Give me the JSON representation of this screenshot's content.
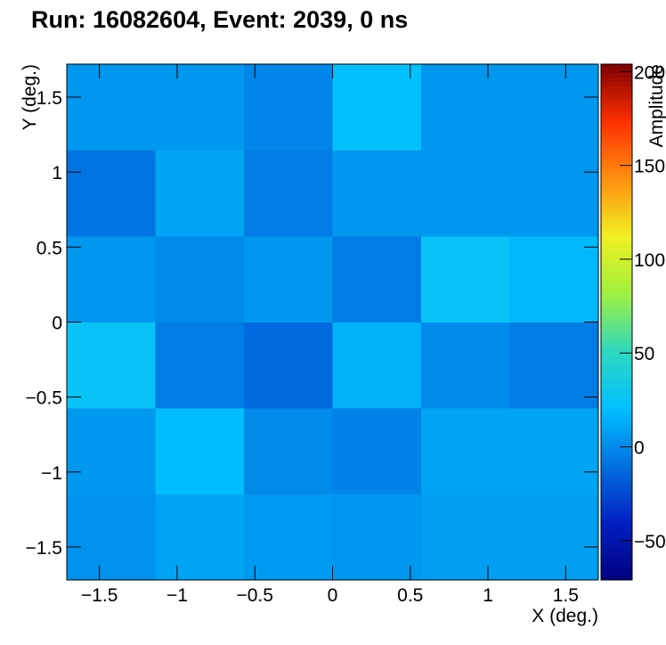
{
  "chart_data": {
    "type": "heatmap",
    "title": "Run: 16082604, Event: 2039, 0 ns",
    "x_label": "X (deg.)",
    "y_label": "Y (deg.)",
    "z_label": "Amplitude",
    "xbins": [
      -1.71,
      -1.14,
      -0.57,
      0,
      0.57,
      1.14,
      1.71
    ],
    "ybins": [
      -1.72,
      -1.147,
      -0.573,
      0,
      0.573,
      1.147,
      1.72
    ],
    "values": [
      [
        3,
        10,
        6,
        5,
        8,
        8
      ],
      [
        5,
        20,
        0,
        -3,
        10,
        10
      ],
      [
        25,
        -5,
        -12,
        15,
        0,
        -5
      ],
      [
        5,
        0,
        5,
        -5,
        25,
        18
      ],
      [
        -8,
        10,
        -5,
        5,
        5,
        5
      ],
      [
        5,
        5,
        -2,
        22,
        5,
        5
      ]
    ],
    "xlim": [
      -1.71,
      1.71
    ],
    "ylim": [
      -1.72,
      1.72
    ],
    "zlim": [
      -71,
      204
    ],
    "xticks": [
      {
        "value": -1.5,
        "label": "−1.5"
      },
      {
        "value": -1,
        "label": "−1"
      },
      {
        "value": -0.5,
        "label": "−0.5"
      },
      0,
      0.5,
      1,
      1.5
    ],
    "yticks": [
      {
        "value": -1.5,
        "label": "−1.5"
      },
      {
        "value": -1,
        "label": "−1"
      },
      {
        "value": -0.5,
        "label": "−0.5"
      },
      0,
      0.5,
      1,
      1.5
    ],
    "zticks": [
      {
        "value": -50,
        "label": "−50"
      },
      0,
      50,
      100,
      150,
      200
    ],
    "palette": [
      "#000080",
      "#0020c0",
      "#0070e0",
      "#00c0ff",
      "#30d8c0",
      "#a0f040",
      "#f0f020",
      "#ff9010",
      "#ff3000",
      "#800000"
    ]
  }
}
